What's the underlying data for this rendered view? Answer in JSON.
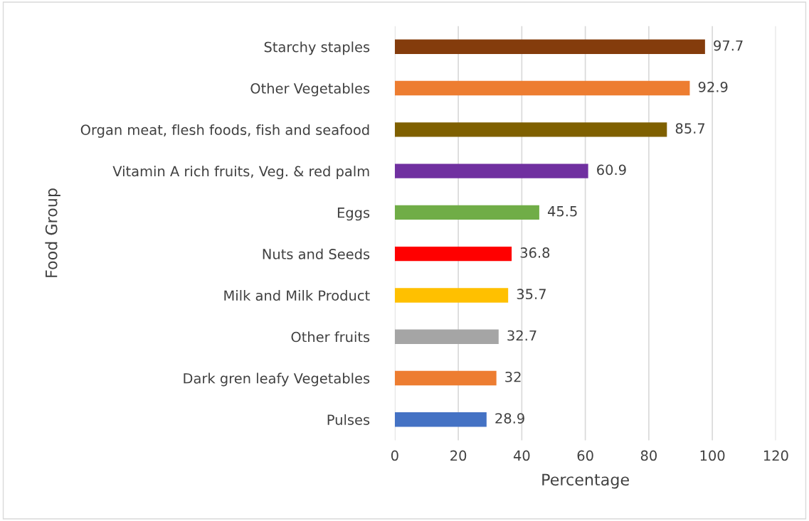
{
  "chart_data": {
    "type": "bar",
    "orientation": "horizontal",
    "xlabel": "Percentage",
    "ylabel": "Food Group",
    "categories": [
      "Starchy staples",
      "Other Vegetables",
      "Organ meat, flesh foods, fish and seafood",
      "Vitamin A rich fruits, Veg. & red palm",
      "Eggs",
      "Nuts and Seeds",
      "Milk and Milk Product",
      "Other fruits",
      "Dark gren leafy Vegetables",
      "Pulses"
    ],
    "values": [
      97.7,
      92.9,
      85.7,
      60.9,
      45.5,
      36.8,
      35.7,
      32.7,
      32,
      28.9
    ],
    "colors": [
      "#843c0c",
      "#ed7d31",
      "#7f6000",
      "#7030a0",
      "#70ad47",
      "#ff0000",
      "#ffc000",
      "#a5a5a5",
      "#ed7d31",
      "#4472c4"
    ],
    "xlim": [
      0,
      120
    ],
    "xticks": [
      0,
      20,
      40,
      60,
      80,
      100,
      120
    ],
    "grid": "x",
    "data_labels": true,
    "legend": false
  }
}
